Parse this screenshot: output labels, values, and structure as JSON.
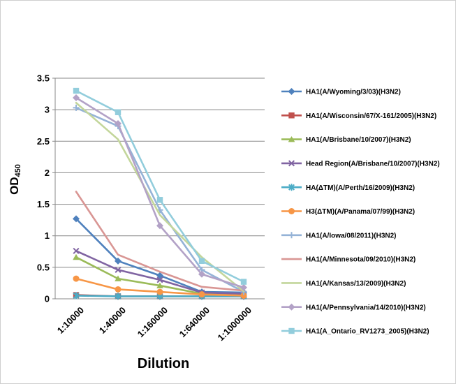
{
  "chart_data": {
    "type": "line",
    "title": "",
    "xlabel": "Dilution",
    "ylabel": "OD",
    "ylabel_subscript": "450",
    "categories": [
      "1:10000",
      "1:40000",
      "1:160000",
      "1:640000",
      "1:1000000"
    ],
    "ylim": [
      0,
      3.5
    ],
    "ytick_step": 0.5,
    "yticks": [
      "0",
      "0.5",
      "1",
      "1.5",
      "2",
      "2.5",
      "3",
      "3.5"
    ],
    "grid": true,
    "legend_position": "right",
    "series": [
      {
        "name": "HA1(A/Wyoming/3/03)(H3N2)",
        "color": "#4F81BD",
        "marker": "diamond",
        "values": [
          1.27,
          0.6,
          0.37,
          0.11,
          0.1
        ]
      },
      {
        "name": "HA1(A/Wisconsin/67/X-161/2005)(H3N2)",
        "color": "#C0504D",
        "marker": "square",
        "values": [
          0.06,
          0.04,
          0.04,
          0.04,
          0.04
        ]
      },
      {
        "name": "HA1(A/Brisbane/10/2007)(H3N2)",
        "color": "#9BBB59",
        "marker": "triangle",
        "values": [
          0.66,
          0.32,
          0.21,
          0.08,
          0.07
        ]
      },
      {
        "name": "Head Region(A/Brisbane/10/2007)(H3N2)",
        "color": "#8064A2",
        "marker": "x",
        "values": [
          0.76,
          0.46,
          0.3,
          0.1,
          0.08
        ]
      },
      {
        "name": "HA(ΔTM)(A/Perth/16/2009)(H3N2)",
        "color": "#4BACC6",
        "marker": "asterisk",
        "values": [
          0.05,
          0.04,
          0.04,
          0.04,
          0.04
        ]
      },
      {
        "name": "H3(ΔTM)(A/Panama/07/99)(H3N2)",
        "color": "#F79646",
        "marker": "circle",
        "values": [
          0.32,
          0.15,
          0.11,
          0.07,
          0.05
        ]
      },
      {
        "name": "HA1(A/Iowa/08/2011)(H3N2)",
        "color": "#95B3D7",
        "marker": "plus",
        "values": [
          3.03,
          2.74,
          1.41,
          0.46,
          0.11
        ]
      },
      {
        "name": "HA1(A/Minnesota/09/2010)(H3N2)",
        "color": "#D99694",
        "marker": "none",
        "values": [
          1.7,
          0.7,
          0.43,
          0.19,
          0.13
        ]
      },
      {
        "name": "HA1(A/Kansas/13/2009)(H3N2)",
        "color": "#C3D69B",
        "marker": "none",
        "values": [
          3.11,
          2.53,
          1.33,
          0.66,
          0.12
        ]
      },
      {
        "name": "HA1(A/Pennsylvania/14/2010)(H3N2)",
        "color": "#B3A2C7",
        "marker": "diamond",
        "values": [
          3.19,
          2.78,
          1.16,
          0.39,
          0.18
        ]
      },
      {
        "name": "HA1(A_Ontario_RV1273_2005)(H3N2)",
        "color": "#92CDDC",
        "marker": "square",
        "values": [
          3.3,
          2.96,
          1.57,
          0.6,
          0.27
        ]
      }
    ]
  },
  "colors": {
    "grid": "#898989",
    "axis": "#898989",
    "text": "#000000",
    "frame_border": "#cfcfcf"
  }
}
